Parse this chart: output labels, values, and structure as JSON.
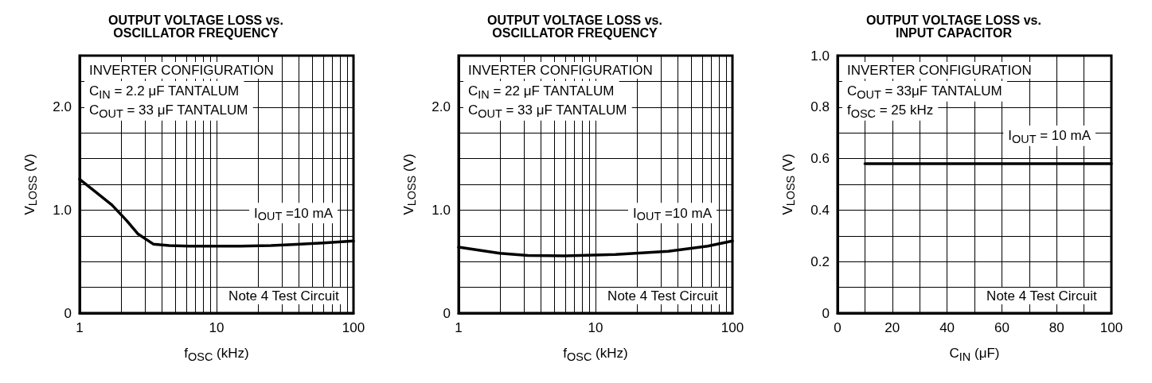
{
  "chart_data": [
    {
      "type": "line",
      "title": "OUTPUT VOLTAGE LOSS vs.\nOSCILLATOR FREQUENCY",
      "xlabel": "f$_{OSC}$ (kHz)",
      "ylabel": "V$_{LOSS}$ (V)",
      "log": "x",
      "grid": true,
      "marker": "none",
      "line_style": "solid",
      "xlim": [
        1,
        100
      ],
      "ylim": [
        0,
        2.5
      ],
      "xticks": [
        1,
        {
          "value": 2,
          "label": null
        },
        {
          "value": 3,
          "label": null
        },
        {
          "value": 4,
          "label": null
        },
        {
          "value": 5,
          "label": null
        },
        {
          "value": 6,
          "label": null
        },
        {
          "value": 7,
          "label": null
        },
        {
          "value": 8,
          "label": null
        },
        {
          "value": 9,
          "label": null
        },
        10,
        {
          "value": 20,
          "label": null
        },
        {
          "value": 30,
          "label": null
        },
        {
          "value": 40,
          "label": null
        },
        {
          "value": 50,
          "label": null
        },
        {
          "value": 60,
          "label": null
        },
        {
          "value": 70,
          "label": null
        },
        {
          "value": 80,
          "label": null
        },
        {
          "value": 90,
          "label": null
        },
        100
      ],
      "yticks": [
        0,
        {
          "value": 0.25,
          "label": null
        },
        {
          "value": 0.5,
          "label": null
        },
        {
          "value": 0.75,
          "label": null
        },
        {
          "value": 1,
          "label": "1.0"
        },
        {
          "value": 1.25,
          "label": null
        },
        {
          "value": 1.5,
          "label": null
        },
        {
          "value": 1.75,
          "label": null
        },
        {
          "value": 2,
          "label": "2.0"
        },
        {
          "value": 2.25,
          "label": null
        }
      ],
      "series": [
        {
          "color": "#000000",
          "x": [
            1,
            1.3,
            1.72,
            2.2,
            2.66,
            3.45,
            4.5,
            6.3,
            10,
            15,
            25,
            36,
            60,
            100
          ],
          "values": [
            1.3,
            1.18,
            1.05,
            0.9,
            0.77,
            0.67,
            0.655,
            0.65,
            0.65,
            0.65,
            0.655,
            0.665,
            0.68,
            0.7
          ]
        }
      ],
      "annotations": [
        "INVERTER CONFIGURATION",
        "C$_{IN}$ = 2.2 μF TANTALUM",
        "C$_{OUT}$ = 33 μF TANTALUM",
        "I$_{OUT}$ =10 mA",
        "Note 4 Test Circuit"
      ]
    },
    {
      "type": "line",
      "title": "OUTPUT VOLTAGE LOSS vs.\nOSCILLATOR FREQUENCY",
      "xlabel": "f$_{OSC}$ (kHz)",
      "ylabel": "V$_{LOSS}$ (V)",
      "log": "x",
      "grid": true,
      "marker": "none",
      "line_style": "solid",
      "xlim": [
        1,
        100
      ],
      "ylim": [
        0,
        2.5
      ],
      "xticks": [
        1,
        {
          "value": 2,
          "label": null
        },
        {
          "value": 3,
          "label": null
        },
        {
          "value": 4,
          "label": null
        },
        {
          "value": 5,
          "label": null
        },
        {
          "value": 6,
          "label": null
        },
        {
          "value": 7,
          "label": null
        },
        {
          "value": 8,
          "label": null
        },
        {
          "value": 9,
          "label": null
        },
        10,
        {
          "value": 20,
          "label": null
        },
        {
          "value": 30,
          "label": null
        },
        {
          "value": 40,
          "label": null
        },
        {
          "value": 50,
          "label": null
        },
        {
          "value": 60,
          "label": null
        },
        {
          "value": 70,
          "label": null
        },
        {
          "value": 80,
          "label": null
        },
        {
          "value": 90,
          "label": null
        },
        100
      ],
      "yticks": [
        0,
        {
          "value": 0.25,
          "label": null
        },
        {
          "value": 0.5,
          "label": null
        },
        {
          "value": 0.75,
          "label": null
        },
        {
          "value": 1,
          "label": "1.0"
        },
        {
          "value": 1.25,
          "label": null
        },
        {
          "value": 1.5,
          "label": null
        },
        {
          "value": 1.75,
          "label": null
        },
        {
          "value": 2,
          "label": "2.0"
        },
        {
          "value": 2.25,
          "label": null
        }
      ],
      "series": [
        {
          "color": "#000000",
          "x": [
            1,
            2,
            3.2,
            6,
            14,
            34,
            66,
            100
          ],
          "values": [
            0.64,
            0.58,
            0.56,
            0.556,
            0.57,
            0.6,
            0.65,
            0.7
          ]
        }
      ],
      "annotations": [
        "INVERTER CONFIGURATION",
        "C$_{IN}$ = 22 μF TANTALUM",
        "C$_{OUT}$ = 33 μF TANTALUM",
        "I$_{OUT}$ =10 mA",
        "Note 4 Test Circuit"
      ]
    },
    {
      "type": "line",
      "title": "OUTPUT VOLTAGE LOSS vs.\nINPUT CAPACITOR",
      "xlabel": "C$_{IN}$ (μF)",
      "ylabel": "V$_{LOSS}$ (V)",
      "grid": true,
      "marker": "none",
      "line_style": "solid",
      "xlim": [
        0,
        100
      ],
      "ylim": [
        0,
        1.0
      ],
      "xticks": [
        0,
        {
          "value": 10,
          "label": null
        },
        20,
        {
          "value": 30,
          "label": null
        },
        40,
        {
          "value": 50,
          "label": null
        },
        60,
        {
          "value": 70,
          "label": null
        },
        80,
        {
          "value": 90,
          "label": null
        },
        100
      ],
      "yticks": [
        0,
        {
          "value": 0.1,
          "label": null
        },
        0.2,
        {
          "value": 0.3,
          "label": null
        },
        0.4,
        {
          "value": 0.5,
          "label": null
        },
        0.6,
        {
          "value": 0.7,
          "label": null
        },
        0.8,
        {
          "value": 0.9,
          "label": null
        },
        {
          "value": 1,
          "label": "1.0"
        }
      ],
      "series": [
        {
          "color": "#000000",
          "x": [
            10,
            100
          ],
          "values": [
            0.58,
            0.58
          ]
        }
      ],
      "annotations": [
        "INVERTER CONFIGURATION",
        "C$_{OUT}$ = 33μF TANTALUM",
        "f$_{OSC}$ = 25 kHz",
        "I$_{OUT}$ = 10 mA",
        "Note 4 Test Circuit"
      ]
    }
  ]
}
